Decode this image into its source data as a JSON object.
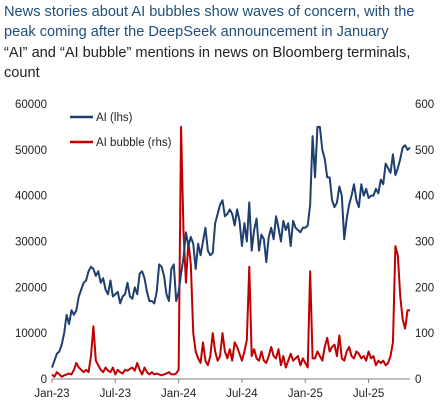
{
  "chart_data": {
    "type": "line",
    "title": "News stories about AI bubbles show waves of concern, with the peak coming after the DeepSeek announcement in January",
    "subtitle": "“AI” and “AI bubble” mentions in news on Bloomberg terminals, count",
    "x_ticks": [
      "Jan-23",
      "Jul-23",
      "Jan-24",
      "Jul-24",
      "Jan-25",
      "Jul-25"
    ],
    "x_range": [
      0,
      147
    ],
    "x_tick_positions": [
      0,
      26,
      52,
      78,
      104,
      130
    ],
    "y_left": {
      "range": [
        0,
        60000
      ],
      "ticks": [
        0,
        10000,
        20000,
        30000,
        40000,
        50000,
        60000
      ],
      "labels": [
        "0",
        "10000",
        "20000",
        "30000",
        "40000",
        "50000",
        "60000"
      ]
    },
    "y_right": {
      "range": [
        0,
        600
      ],
      "ticks": [
        0,
        100,
        200,
        300,
        400,
        500,
        600
      ],
      "labels": [
        "0",
        "100",
        "200",
        "300",
        "400",
        "500",
        "600"
      ]
    },
    "legend_position": "top-left",
    "series": [
      {
        "name": "AI (lhs)",
        "axis": "left",
        "color": "#1f3f6e",
        "points": [
          [
            0,
            2500
          ],
          [
            1,
            4000
          ],
          [
            2,
            5500
          ],
          [
            3,
            6000
          ],
          [
            4,
            7500
          ],
          [
            5,
            10000
          ],
          [
            6,
            14000
          ],
          [
            7,
            12000
          ],
          [
            8,
            15000
          ],
          [
            9,
            14000
          ],
          [
            10,
            15000
          ],
          [
            11,
            18000
          ],
          [
            12,
            19500
          ],
          [
            13,
            21000
          ],
          [
            14,
            21500
          ],
          [
            15,
            23500
          ],
          [
            16,
            24500
          ],
          [
            17,
            24000
          ],
          [
            18,
            22500
          ],
          [
            19,
            23500
          ],
          [
            20,
            21000
          ],
          [
            21,
            22000
          ],
          [
            22,
            19500
          ],
          [
            23,
            18500
          ],
          [
            24,
            21500
          ],
          [
            25,
            18000
          ],
          [
            26,
            18500
          ],
          [
            27,
            19000
          ],
          [
            28,
            16500
          ],
          [
            29,
            18000
          ],
          [
            30,
            18500
          ],
          [
            31,
            21000
          ],
          [
            32,
            18000
          ],
          [
            33,
            17500
          ],
          [
            34,
            20000
          ],
          [
            35,
            18500
          ],
          [
            36,
            23000
          ],
          [
            37,
            23500
          ],
          [
            38,
            22000
          ],
          [
            39,
            19000
          ],
          [
            40,
            17000
          ],
          [
            41,
            17000
          ],
          [
            42,
            16500
          ],
          [
            43,
            19000
          ],
          [
            44,
            25000
          ],
          [
            45,
            24500
          ],
          [
            46,
            22500
          ],
          [
            47,
            18500
          ],
          [
            48,
            17000
          ],
          [
            49,
            24000
          ],
          [
            50,
            25000
          ],
          [
            51,
            17000
          ],
          [
            52,
            19000
          ],
          [
            53,
            23000
          ],
          [
            54,
            26500
          ],
          [
            55,
            32000
          ],
          [
            56,
            29000
          ],
          [
            57,
            31000
          ],
          [
            58,
            29500
          ],
          [
            59,
            24000
          ],
          [
            60,
            29500
          ],
          [
            61,
            27000
          ],
          [
            62,
            30000
          ],
          [
            63,
            33000
          ],
          [
            64,
            28000
          ],
          [
            65,
            27000
          ],
          [
            66,
            27500
          ],
          [
            67,
            34000
          ],
          [
            68,
            36000
          ],
          [
            69,
            38000
          ],
          [
            70,
            39000
          ],
          [
            71,
            35500
          ],
          [
            72,
            36000
          ],
          [
            73,
            37000
          ],
          [
            74,
            36000
          ],
          [
            75,
            33500
          ],
          [
            76,
            37000
          ],
          [
            77,
            34500
          ],
          [
            78,
            29000
          ],
          [
            79,
            34000
          ],
          [
            80,
            30000
          ],
          [
            81,
            38500
          ],
          [
            82,
            28000
          ],
          [
            83,
            32500
          ],
          [
            84,
            35000
          ],
          [
            85,
            28000
          ],
          [
            86,
            31500
          ],
          [
            87,
            30500
          ],
          [
            88,
            25500
          ],
          [
            89,
            31000
          ],
          [
            90,
            33000
          ],
          [
            91,
            30500
          ],
          [
            92,
            35500
          ],
          [
            93,
            33000
          ],
          [
            94,
            30000
          ],
          [
            95,
            34500
          ],
          [
            96,
            32500
          ],
          [
            97,
            34000
          ],
          [
            98,
            29000
          ],
          [
            99,
            34500
          ],
          [
            100,
            33000
          ],
          [
            101,
            32500
          ],
          [
            102,
            32000
          ],
          [
            103,
            33000
          ],
          [
            104,
            33000
          ],
          [
            105,
            33500
          ],
          [
            106,
            38000
          ],
          [
            107,
            53000
          ],
          [
            108,
            44000
          ],
          [
            109,
            55000
          ],
          [
            110,
            55000
          ],
          [
            111,
            50000
          ],
          [
            112,
            48000
          ],
          [
            113,
            44000
          ],
          [
            114,
            44000
          ],
          [
            115,
            39000
          ],
          [
            116,
            37500
          ],
          [
            117,
            38500
          ],
          [
            118,
            42000
          ],
          [
            119,
            40000
          ],
          [
            120,
            30500
          ],
          [
            121,
            35000
          ],
          [
            122,
            38000
          ],
          [
            123,
            40000
          ],
          [
            124,
            42500
          ],
          [
            125,
            39000
          ],
          [
            126,
            37500
          ],
          [
            127,
            42500
          ],
          [
            128,
            40000
          ],
          [
            129,
            41500
          ],
          [
            130,
            39500
          ],
          [
            131,
            40000
          ],
          [
            132,
            40000
          ],
          [
            133,
            41500
          ],
          [
            134,
            40500
          ],
          [
            135,
            43500
          ],
          [
            136,
            42500
          ],
          [
            137,
            47000
          ],
          [
            138,
            46000
          ],
          [
            139,
            45000
          ],
          [
            140,
            49000
          ],
          [
            141,
            44500
          ],
          [
            142,
            46000
          ],
          [
            143,
            48000
          ],
          [
            144,
            50500
          ],
          [
            145,
            51000
          ],
          [
            146,
            50000
          ],
          [
            147,
            50500
          ]
        ]
      },
      {
        "name": "AI bubble (rhs)",
        "axis": "right",
        "color": "#c00000",
        "points": [
          [
            0,
            10
          ],
          [
            1,
            5
          ],
          [
            2,
            15
          ],
          [
            3,
            10
          ],
          [
            4,
            5
          ],
          [
            5,
            8
          ],
          [
            6,
            10
          ],
          [
            7,
            12
          ],
          [
            8,
            10
          ],
          [
            9,
            20
          ],
          [
            10,
            35
          ],
          [
            11,
            25
          ],
          [
            12,
            20
          ],
          [
            13,
            15
          ],
          [
            14,
            20
          ],
          [
            15,
            15
          ],
          [
            16,
            50
          ],
          [
            17,
            115
          ],
          [
            18,
            40
          ],
          [
            19,
            30
          ],
          [
            20,
            20
          ],
          [
            21,
            15
          ],
          [
            22,
            25
          ],
          [
            23,
            18
          ],
          [
            24,
            15
          ],
          [
            25,
            25
          ],
          [
            26,
            10
          ],
          [
            27,
            20
          ],
          [
            28,
            15
          ],
          [
            29,
            12
          ],
          [
            30,
            20
          ],
          [
            31,
            18
          ],
          [
            32,
            22
          ],
          [
            33,
            25
          ],
          [
            34,
            18
          ],
          [
            35,
            35
          ],
          [
            36,
            20
          ],
          [
            37,
            10
          ],
          [
            38,
            25
          ],
          [
            39,
            15
          ],
          [
            40,
            10
          ],
          [
            41,
            15
          ],
          [
            42,
            10
          ],
          [
            43,
            12
          ],
          [
            44,
            10
          ],
          [
            45,
            8
          ],
          [
            46,
            10
          ],
          [
            47,
            12
          ],
          [
            48,
            15
          ],
          [
            49,
            10
          ],
          [
            50,
            10
          ],
          [
            51,
            12
          ],
          [
            52,
            20
          ],
          [
            53,
            550
          ],
          [
            54,
            320
          ],
          [
            55,
            210
          ],
          [
            56,
            300
          ],
          [
            57,
            250
          ],
          [
            58,
            100
          ],
          [
            59,
            60
          ],
          [
            60,
            45
          ],
          [
            61,
            35
          ],
          [
            62,
            80
          ],
          [
            63,
            40
          ],
          [
            64,
            30
          ],
          [
            65,
            50
          ],
          [
            66,
            100
          ],
          [
            67,
            60
          ],
          [
            68,
            40
          ],
          [
            69,
            50
          ],
          [
            70,
            100
          ],
          [
            71,
            60
          ],
          [
            72,
            45
          ],
          [
            73,
            65
          ],
          [
            74,
            40
          ],
          [
            75,
            80
          ],
          [
            76,
            70
          ],
          [
            77,
            55
          ],
          [
            78,
            40
          ],
          [
            79,
            60
          ],
          [
            80,
            85
          ],
          [
            81,
            245
          ],
          [
            82,
            50
          ],
          [
            83,
            65
          ],
          [
            84,
            45
          ],
          [
            85,
            40
          ],
          [
            86,
            60
          ],
          [
            87,
            40
          ],
          [
            88,
            35
          ],
          [
            89,
            50
          ],
          [
            90,
            70
          ],
          [
            91,
            50
          ],
          [
            92,
            45
          ],
          [
            93,
            65
          ],
          [
            94,
            30
          ],
          [
            95,
            50
          ],
          [
            96,
            25
          ],
          [
            97,
            40
          ],
          [
            98,
            55
          ],
          [
            99,
            40
          ],
          [
            100,
            45
          ],
          [
            101,
            50
          ],
          [
            102,
            30
          ],
          [
            103,
            45
          ],
          [
            104,
            35
          ],
          [
            105,
            25
          ],
          [
            106,
            235
          ],
          [
            107,
            45
          ],
          [
            108,
            45
          ],
          [
            109,
            60
          ],
          [
            110,
            50
          ],
          [
            111,
            40
          ],
          [
            112,
            70
          ],
          [
            113,
            90
          ],
          [
            114,
            60
          ],
          [
            115,
            70
          ],
          [
            116,
            75
          ],
          [
            117,
            50
          ],
          [
            118,
            95
          ],
          [
            119,
            45
          ],
          [
            120,
            40
          ],
          [
            121,
            60
          ],
          [
            122,
            70
          ],
          [
            123,
            50
          ],
          [
            124,
            45
          ],
          [
            125,
            60
          ],
          [
            126,
            55
          ],
          [
            127,
            45
          ],
          [
            128,
            50
          ],
          [
            129,
            40
          ],
          [
            130,
            60
          ],
          [
            131,
            45
          ],
          [
            132,
            50
          ],
          [
            133,
            30
          ],
          [
            134,
            40
          ],
          [
            135,
            35
          ],
          [
            136,
            40
          ],
          [
            137,
            30
          ],
          [
            138,
            35
          ],
          [
            139,
            50
          ],
          [
            140,
            80
          ],
          [
            141,
            290
          ],
          [
            142,
            270
          ],
          [
            143,
            180
          ],
          [
            144,
            130
          ],
          [
            145,
            110
          ],
          [
            146,
            150
          ],
          [
            147,
            150
          ]
        ]
      }
    ]
  }
}
